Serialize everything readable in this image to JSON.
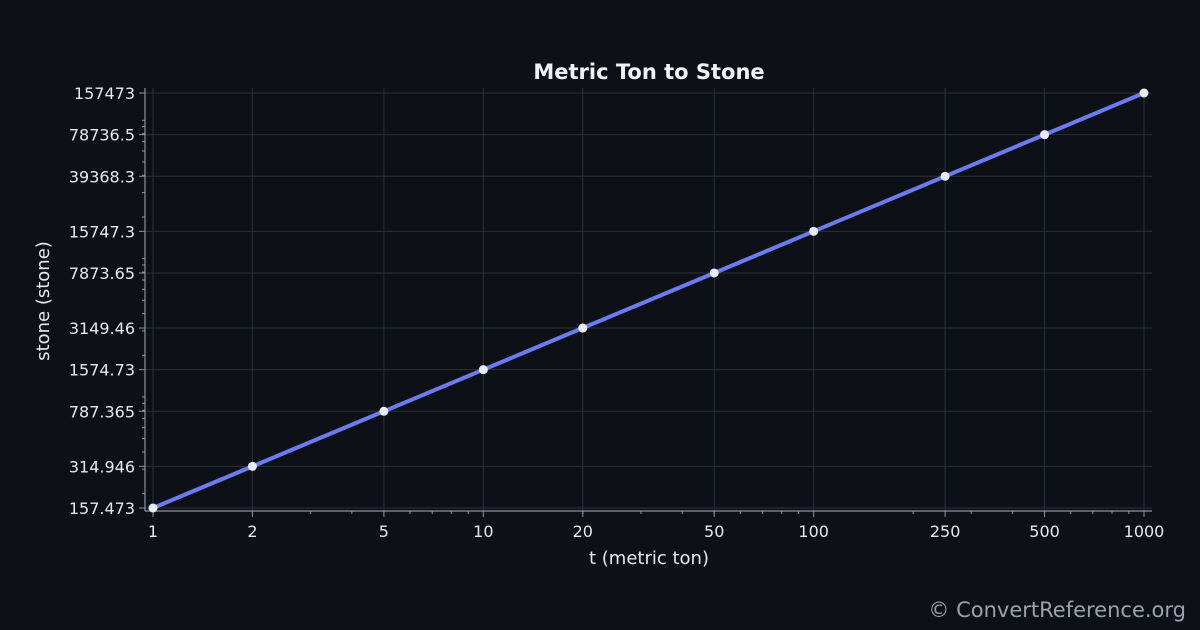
{
  "chart_data": {
    "type": "line",
    "title": "Metric Ton to Stone",
    "xlabel": "t (metric ton)",
    "ylabel": "stone (stone)",
    "x_scale": "log",
    "y_scale": "log",
    "xlim": [
      1,
      1000
    ],
    "ylim": [
      157.473,
      157473
    ],
    "x_ticks": [
      1,
      2,
      5,
      10,
      20,
      50,
      100,
      250,
      500,
      1000
    ],
    "y_ticks": [
      "157.473",
      "314.946",
      "787.365",
      "1574.73",
      "3149.46",
      "7873.65",
      "15747.3",
      "39368.3",
      "78736.5",
      "157473"
    ],
    "grid": true,
    "series": [
      {
        "x": [
          1,
          2,
          5,
          10,
          20,
          50,
          100,
          250,
          500,
          1000
        ],
        "y": [
          157.473,
          314.946,
          787.365,
          1574.73,
          3149.46,
          7873.65,
          15747.3,
          39368.3,
          78736.5,
          157473
        ]
      }
    ],
    "colors": {
      "line": "#6b7cf0",
      "marker": "#e8ecf5",
      "background": "#0d1117",
      "grid": "#2a313b",
      "axis": "#8b949e"
    }
  },
  "watermark": "© ConvertReference.org"
}
